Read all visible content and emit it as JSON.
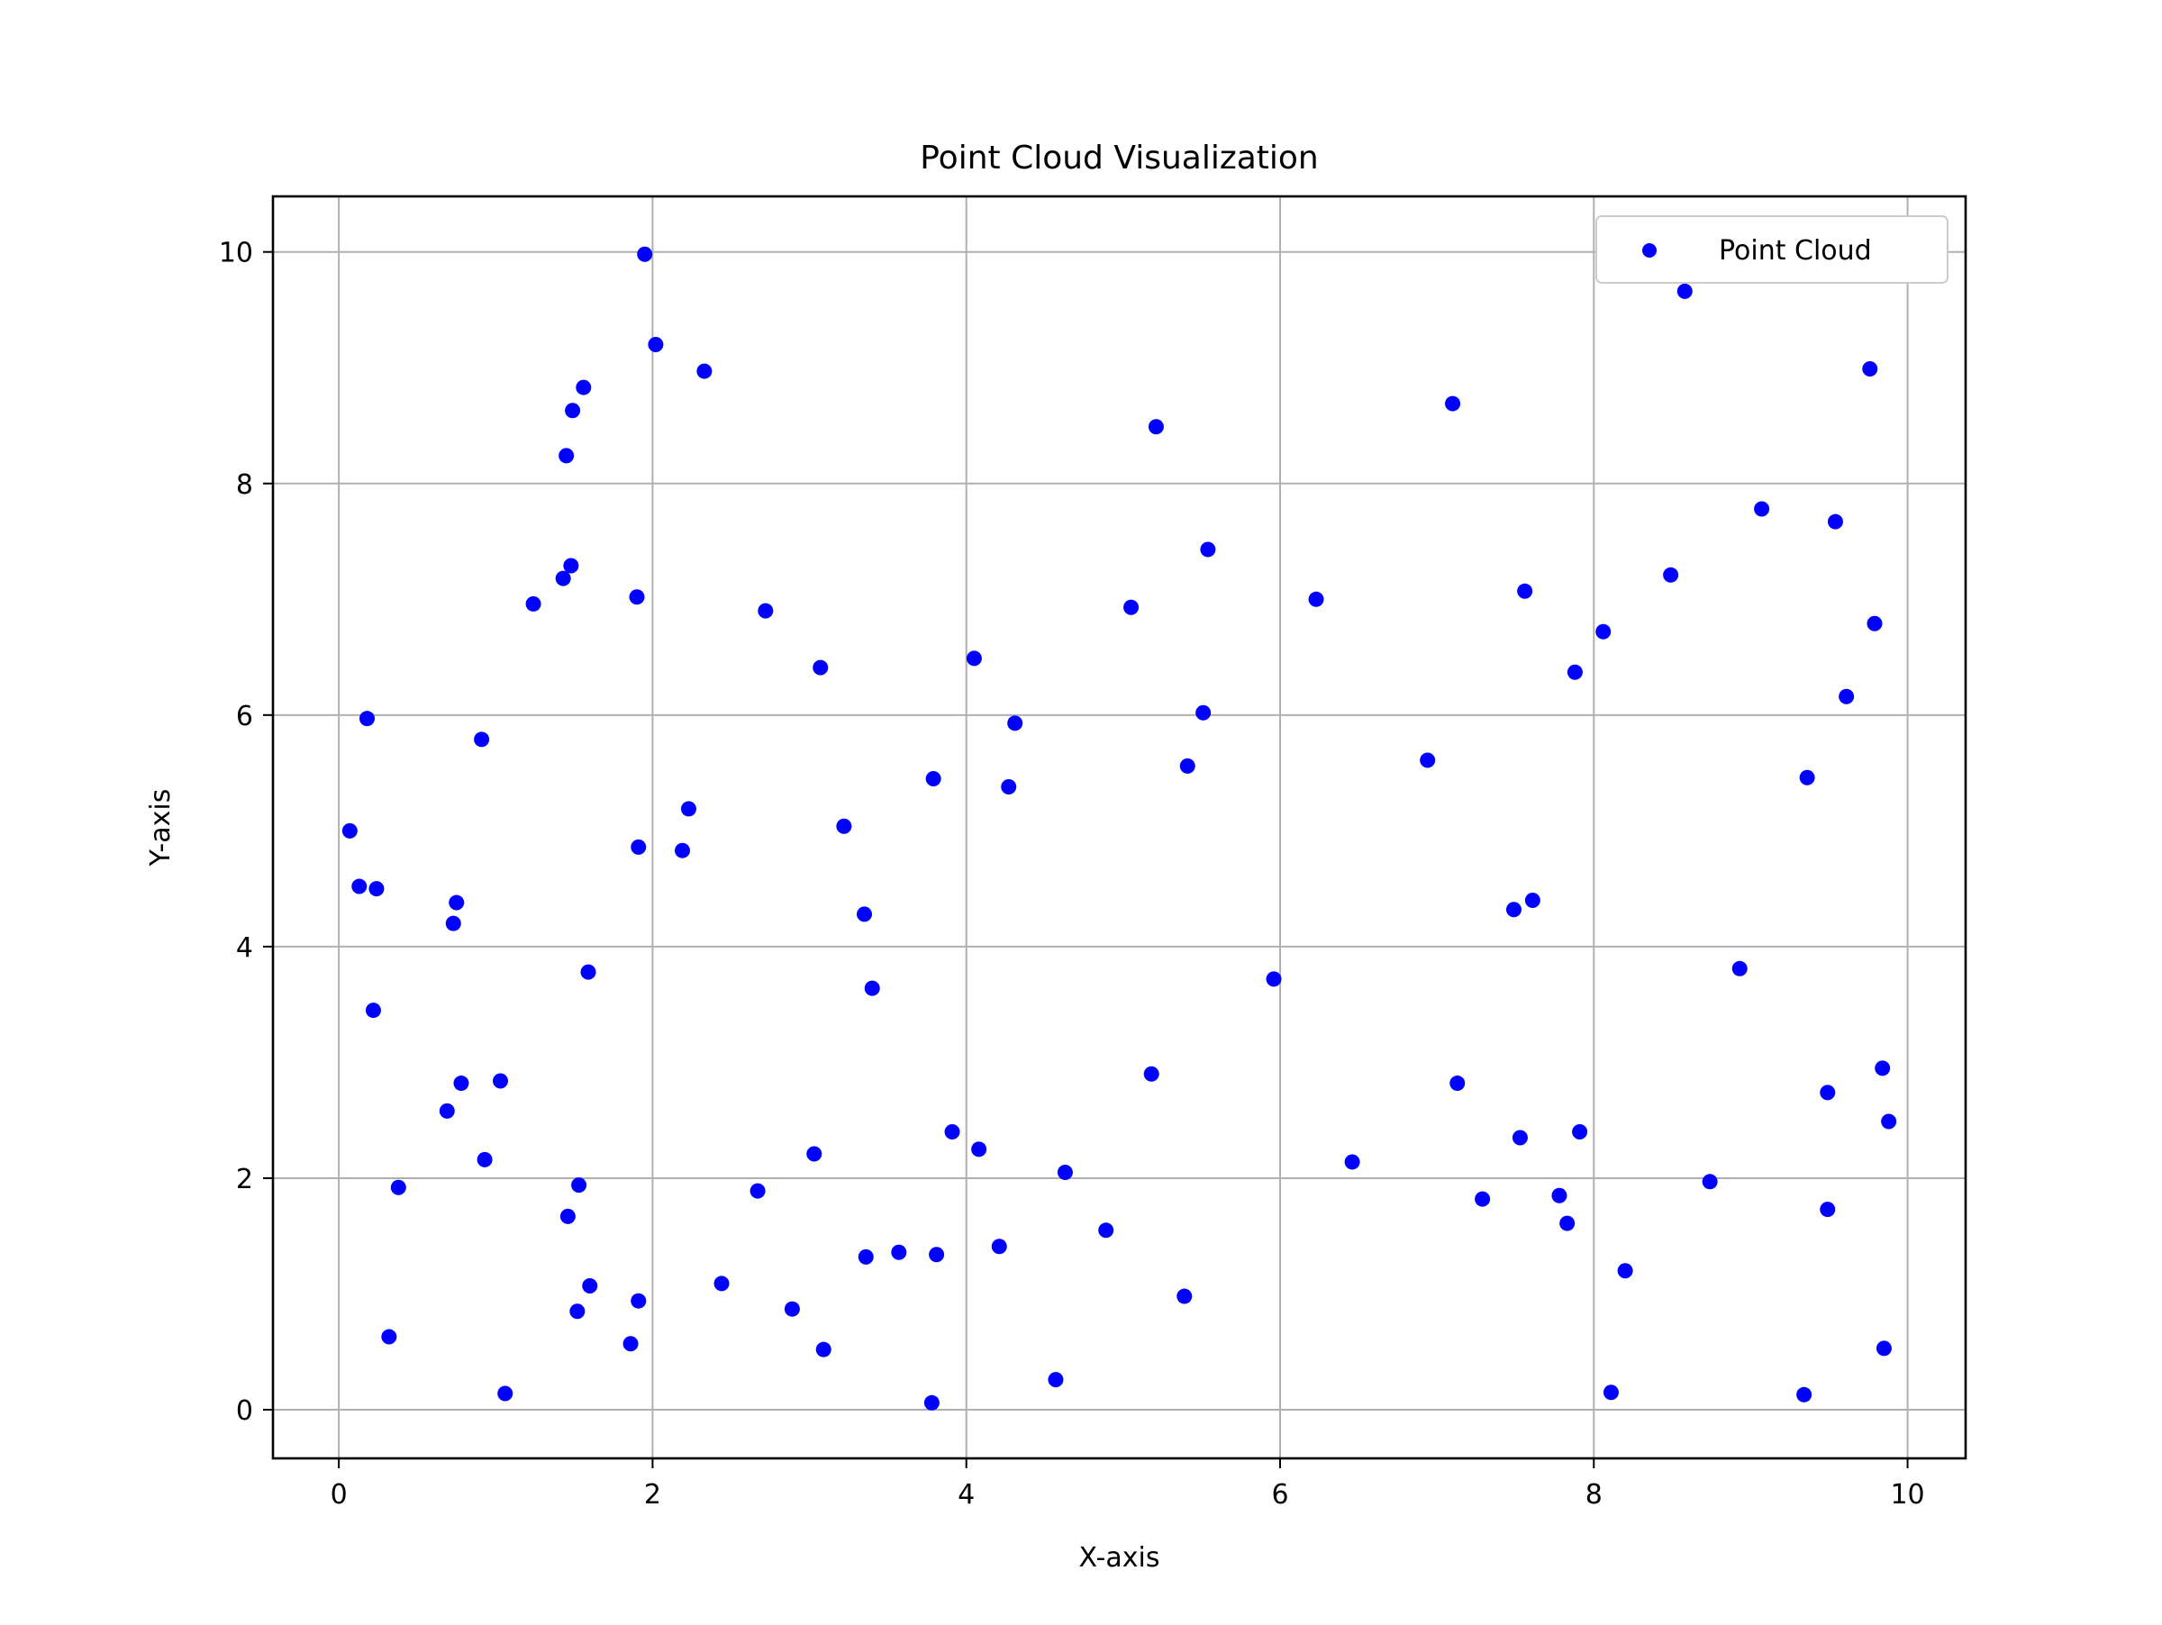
{
  "chart_data": {
    "type": "scatter",
    "title": "Point Cloud Visualization",
    "xlabel": "X-axis",
    "ylabel": "Y-axis",
    "xlim": [
      -0.42,
      10.37
    ],
    "ylim": [
      -0.42,
      10.48
    ],
    "xticks": [
      "0",
      "2",
      "4",
      "6",
      "8",
      "10"
    ],
    "yticks": [
      "0",
      "2",
      "4",
      "6",
      "8",
      "10"
    ],
    "grid": true,
    "legend": "top-right",
    "series": [
      {
        "name": "Point Cloud",
        "color": "#0000ff",
        "points": [
          [
            0.07,
            5.0
          ],
          [
            0.13,
            4.52
          ],
          [
            0.18,
            5.97
          ],
          [
            0.22,
            3.45
          ],
          [
            0.24,
            4.5
          ],
          [
            0.32,
            0.63
          ],
          [
            0.38,
            1.92
          ],
          [
            0.69,
            2.58
          ],
          [
            0.73,
            4.2
          ],
          [
            0.75,
            4.38
          ],
          [
            0.78,
            2.82
          ],
          [
            0.91,
            5.79
          ],
          [
            0.93,
            2.16
          ],
          [
            1.03,
            2.84
          ],
          [
            1.06,
            0.14
          ],
          [
            1.24,
            6.96
          ],
          [
            1.43,
            7.18
          ],
          [
            1.45,
            8.24
          ],
          [
            1.46,
            1.67
          ],
          [
            1.48,
            7.29
          ],
          [
            1.49,
            8.63
          ],
          [
            1.52,
            0.85
          ],
          [
            1.53,
            1.94
          ],
          [
            1.56,
            8.83
          ],
          [
            1.59,
            3.78
          ],
          [
            1.6,
            1.07
          ],
          [
            1.86,
            0.57
          ],
          [
            1.9,
            7.02
          ],
          [
            1.91,
            4.86
          ],
          [
            1.91,
            0.94
          ],
          [
            1.95,
            9.98
          ],
          [
            2.02,
            9.2
          ],
          [
            2.19,
            4.83
          ],
          [
            2.23,
            5.19
          ],
          [
            2.33,
            8.97
          ],
          [
            2.44,
            1.09
          ],
          [
            2.67,
            1.89
          ],
          [
            2.72,
            6.9
          ],
          [
            2.89,
            0.87
          ],
          [
            3.03,
            2.21
          ],
          [
            3.07,
            6.41
          ],
          [
            3.09,
            0.52
          ],
          [
            3.22,
            5.04
          ],
          [
            3.35,
            4.28
          ],
          [
            3.36,
            1.32
          ],
          [
            3.4,
            3.64
          ],
          [
            3.57,
            1.36
          ],
          [
            3.78,
            0.06
          ],
          [
            3.79,
            5.45
          ],
          [
            3.81,
            1.34
          ],
          [
            3.91,
            2.4
          ],
          [
            4.05,
            6.49
          ],
          [
            4.08,
            2.25
          ],
          [
            4.21,
            1.41
          ],
          [
            4.27,
            5.38
          ],
          [
            4.31,
            5.93
          ],
          [
            4.57,
            0.26
          ],
          [
            4.63,
            2.05
          ],
          [
            4.89,
            1.55
          ],
          [
            5.05,
            6.93
          ],
          [
            5.18,
            2.9
          ],
          [
            5.21,
            8.49
          ],
          [
            5.39,
            0.98
          ],
          [
            5.41,
            5.56
          ],
          [
            5.51,
            6.02
          ],
          [
            5.54,
            7.43
          ],
          [
            5.96,
            3.72
          ],
          [
            6.23,
            7.0
          ],
          [
            6.46,
            2.14
          ],
          [
            6.94,
            5.61
          ],
          [
            7.1,
            8.69
          ],
          [
            7.13,
            2.82
          ],
          [
            7.29,
            1.82
          ],
          [
            7.49,
            4.32
          ],
          [
            7.53,
            2.35
          ],
          [
            7.56,
            7.07
          ],
          [
            7.61,
            4.4
          ],
          [
            7.78,
            1.85
          ],
          [
            7.83,
            1.61
          ],
          [
            7.88,
            6.37
          ],
          [
            7.91,
            2.4
          ],
          [
            8.06,
            6.72
          ],
          [
            8.11,
            0.15
          ],
          [
            8.2,
            1.2
          ],
          [
            8.49,
            7.21
          ],
          [
            8.58,
            9.66
          ],
          [
            8.74,
            1.97
          ],
          [
            8.93,
            3.81
          ],
          [
            9.07,
            7.78
          ],
          [
            9.34,
            0.13
          ],
          [
            9.36,
            5.46
          ],
          [
            9.49,
            1.73
          ],
          [
            9.49,
            2.74
          ],
          [
            9.54,
            7.67
          ],
          [
            9.61,
            6.16
          ],
          [
            9.76,
            8.99
          ],
          [
            9.79,
            6.79
          ],
          [
            9.84,
            2.95
          ],
          [
            9.85,
            0.53
          ],
          [
            9.88,
            2.49
          ]
        ]
      }
    ]
  }
}
